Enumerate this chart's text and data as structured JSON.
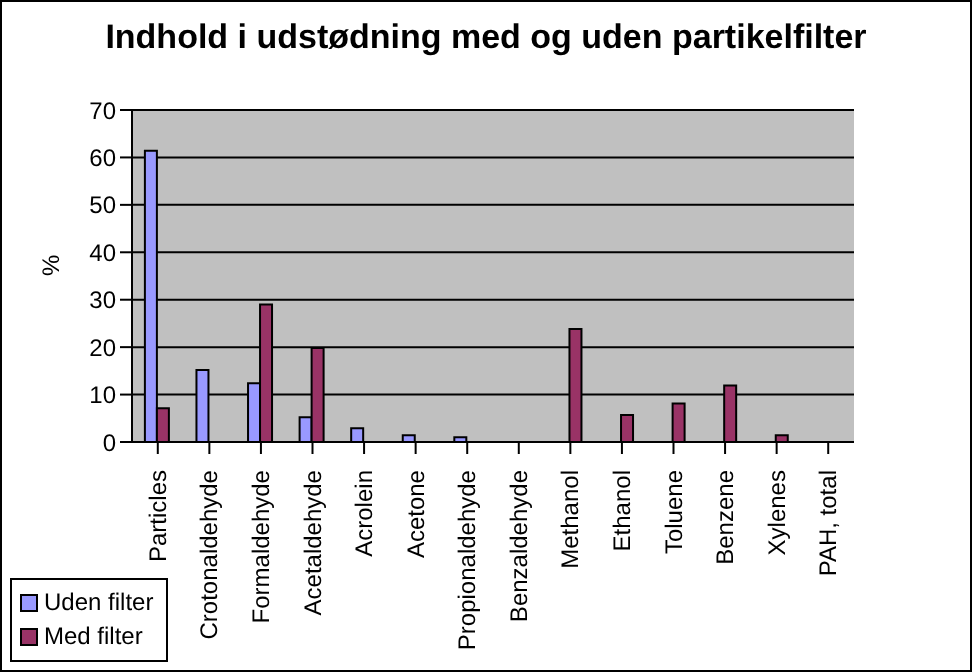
{
  "chart_data": {
    "type": "bar",
    "title": "Indhold i udstødning med og uden partikelfilter",
    "ylabel": "%",
    "categories": [
      "Particles",
      "Crotonaldehyde",
      "Formaldehyde",
      "Acetaldehyde",
      "Acrolein",
      "Acetone",
      "Propionaldehyde",
      "Benzaldehyde",
      "Methanol",
      "Ethanol",
      "Toluene",
      "Benzene",
      "Xylenes",
      "PAH, total"
    ],
    "series": [
      {
        "name": "Uden filter",
        "color": "#9999ff",
        "values": [
          61.4,
          15.2,
          12.4,
          5.2,
          2.9,
          1.4,
          1.0,
          null,
          null,
          null,
          null,
          null,
          null,
          null
        ]
      },
      {
        "name": "Med filter",
        "color": "#993366",
        "values": [
          7.1,
          null,
          29,
          19.8,
          null,
          null,
          null,
          null,
          23.8,
          5.7,
          8.1,
          11.9,
          1.4,
          null
        ]
      }
    ],
    "ylim": [
      0,
      70
    ],
    "yticks": [
      0,
      10,
      20,
      30,
      40,
      50,
      60,
      70
    ],
    "grid": "y",
    "legend": "bottom left"
  }
}
